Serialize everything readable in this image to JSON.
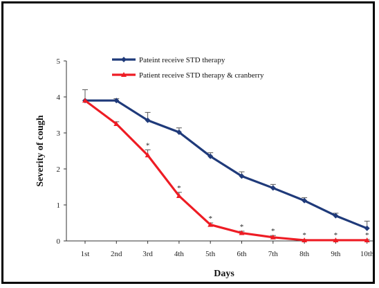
{
  "chart_data": {
    "type": "line",
    "xlabel": "Days",
    "ylabel": "Severity of cough",
    "ylim": [
      0,
      5
    ],
    "yticks": [
      0,
      1,
      2,
      3,
      4,
      5
    ],
    "categories": [
      "1st",
      "2nd",
      "3rd",
      "4th",
      "5th",
      "6th",
      "7th",
      "8th",
      "9th",
      "10th"
    ],
    "grid": false,
    "legend_position": "top-left",
    "series": [
      {
        "name": "Pateint receive STD therapy",
        "color": "#1f3a7a",
        "marker": "diamond",
        "values": [
          3.9,
          3.9,
          3.35,
          3.02,
          2.35,
          1.8,
          1.47,
          1.12,
          0.7,
          0.35
        ],
        "error": [
          0.0,
          0.05,
          0.22,
          0.12,
          0.1,
          0.12,
          0.1,
          0.08,
          0.07,
          0.2
        ]
      },
      {
        "name": "Patient receive STD therapy & cranberry",
        "color": "#ee1c24",
        "marker": "triangle",
        "values": [
          3.9,
          3.25,
          2.38,
          1.25,
          0.45,
          0.22,
          0.1,
          0.02,
          0.02,
          0.02
        ],
        "error": [
          0.3,
          0.06,
          0.15,
          0.1,
          0.05,
          0.05,
          0.05,
          0.02,
          0.02,
          0.02
        ],
        "significance": [
          "",
          "",
          "*",
          "*",
          "*",
          "*",
          "*",
          "*",
          "*",
          "*"
        ]
      }
    ]
  }
}
